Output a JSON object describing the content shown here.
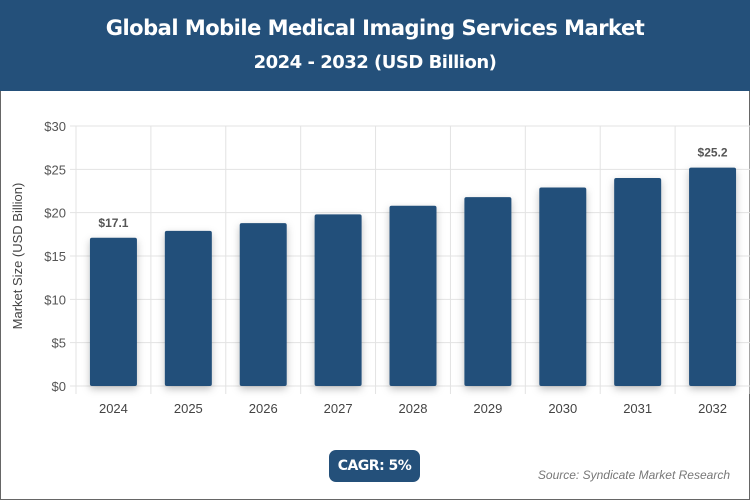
{
  "header": {
    "title": "Global Mobile Medical Imaging Services Market",
    "subtitle": "2024 - 2032 (USD Billion)"
  },
  "chart_data": {
    "type": "bar",
    "title": "Global Mobile Medical Imaging Services Market",
    "subtitle": "2024 - 2032 (USD Billion)",
    "categories": [
      "2024",
      "2025",
      "2026",
      "2027",
      "2028",
      "2029",
      "2030",
      "2031",
      "2032"
    ],
    "values": [
      17.1,
      17.9,
      18.8,
      19.8,
      20.8,
      21.8,
      22.9,
      24.0,
      25.2
    ],
    "data_labels": {
      "0": "$17.1",
      "8": "$25.2"
    },
    "xlabel": "",
    "ylabel": "Market Size (USD Billion)",
    "ylim": [
      0,
      30
    ],
    "yticks": [
      "$0",
      "$5",
      "$10",
      "$15",
      "$20",
      "$25",
      "$30"
    ],
    "grid": true,
    "bar_color": "#24507a"
  },
  "badge": {
    "cagr": "CAGR: 5%"
  },
  "source": "Source: Syndicate Market Research"
}
